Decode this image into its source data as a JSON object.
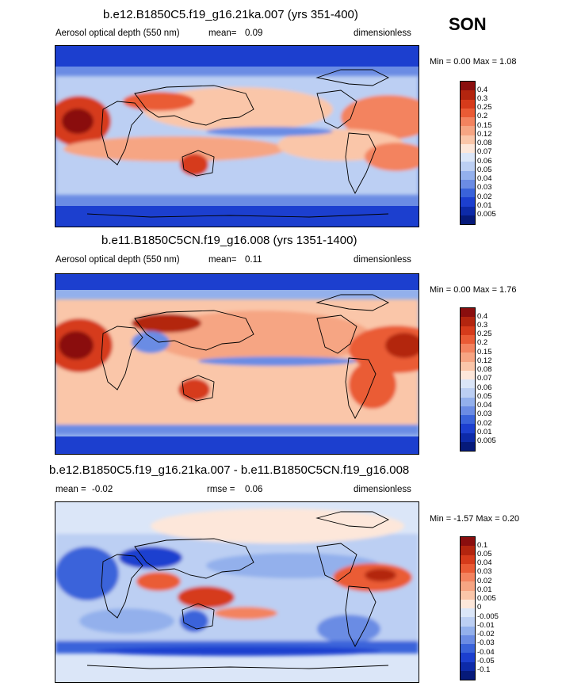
{
  "season": "SON",
  "panels": [
    {
      "title": "b.e12.B1850C5.f19_g16.21ka.007 (yrs 351-400)",
      "variable": "Aerosol optical depth (550 nm)",
      "mean_label": "mean=",
      "mean": "0.09",
      "units": "dimensionless",
      "minmax": "Min =   0.00 Max =   1.08",
      "colorbar": {
        "labels": [
          "0.4",
          "0.3",
          "0.25",
          "0.2",
          "0.15",
          "0.12",
          "0.08",
          "0.07",
          "0.06",
          "0.05",
          "0.04",
          "0.03",
          "0.02",
          "0.01",
          "0.005"
        ],
        "colors": [
          "#8a0e0e",
          "#b3250f",
          "#d63b1b",
          "#ea5b35",
          "#f3835f",
          "#f6a583",
          "#fac6a9",
          "#fde7da",
          "#dbe6f8",
          "#bccff3",
          "#93b0ec",
          "#6b8ce4",
          "#3a63da",
          "#1c3fcf",
          "#0d2aa8",
          "#061a7a"
        ]
      }
    },
    {
      "title": "b.e11.B1850C5CN.f19_g16.008 (yrs 1351-1400)",
      "variable": "Aerosol optical depth (550 nm)",
      "mean_label": "mean=",
      "mean": "0.11",
      "units": "dimensionless",
      "minmax": "Min =   0.00 Max =   1.76",
      "colorbar": {
        "labels": [
          "0.4",
          "0.3",
          "0.25",
          "0.2",
          "0.15",
          "0.12",
          "0.08",
          "0.07",
          "0.06",
          "0.05",
          "0.04",
          "0.03",
          "0.02",
          "0.01",
          "0.005"
        ],
        "colors": [
          "#8a0e0e",
          "#b3250f",
          "#d63b1b",
          "#ea5b35",
          "#f3835f",
          "#f6a583",
          "#fac6a9",
          "#fde7da",
          "#dbe6f8",
          "#bccff3",
          "#93b0ec",
          "#6b8ce4",
          "#3a63da",
          "#1c3fcf",
          "#0d2aa8",
          "#061a7a"
        ]
      }
    },
    {
      "title": "b.e12.B1850C5.f19_g16.21ka.007 - b.e11.B1850C5CN.f19_g16.008",
      "mean_label": "mean =",
      "mean": "-0.02",
      "rmse_label": "rmse =",
      "rmse": "0.06",
      "units": "dimensionless",
      "minmax": "Min =  -1.57 Max =   0.20",
      "colorbar": {
        "labels": [
          "0.1",
          "0.05",
          "0.04",
          "0.03",
          "0.02",
          "0.01",
          "0.005",
          "0",
          "-0.005",
          "-0.01",
          "-0.02",
          "-0.03",
          "-0.04",
          "-0.05",
          "-0.1"
        ],
        "colors": [
          "#8a0e0e",
          "#b3250f",
          "#d63b1b",
          "#ea5b35",
          "#f3835f",
          "#f6a583",
          "#fac6a9",
          "#fde7da",
          "#dbe6f8",
          "#bccff3",
          "#93b0ec",
          "#6b8ce4",
          "#3a63da",
          "#1c3fcf",
          "#0d2aa8",
          "#061a7a"
        ]
      }
    }
  ]
}
